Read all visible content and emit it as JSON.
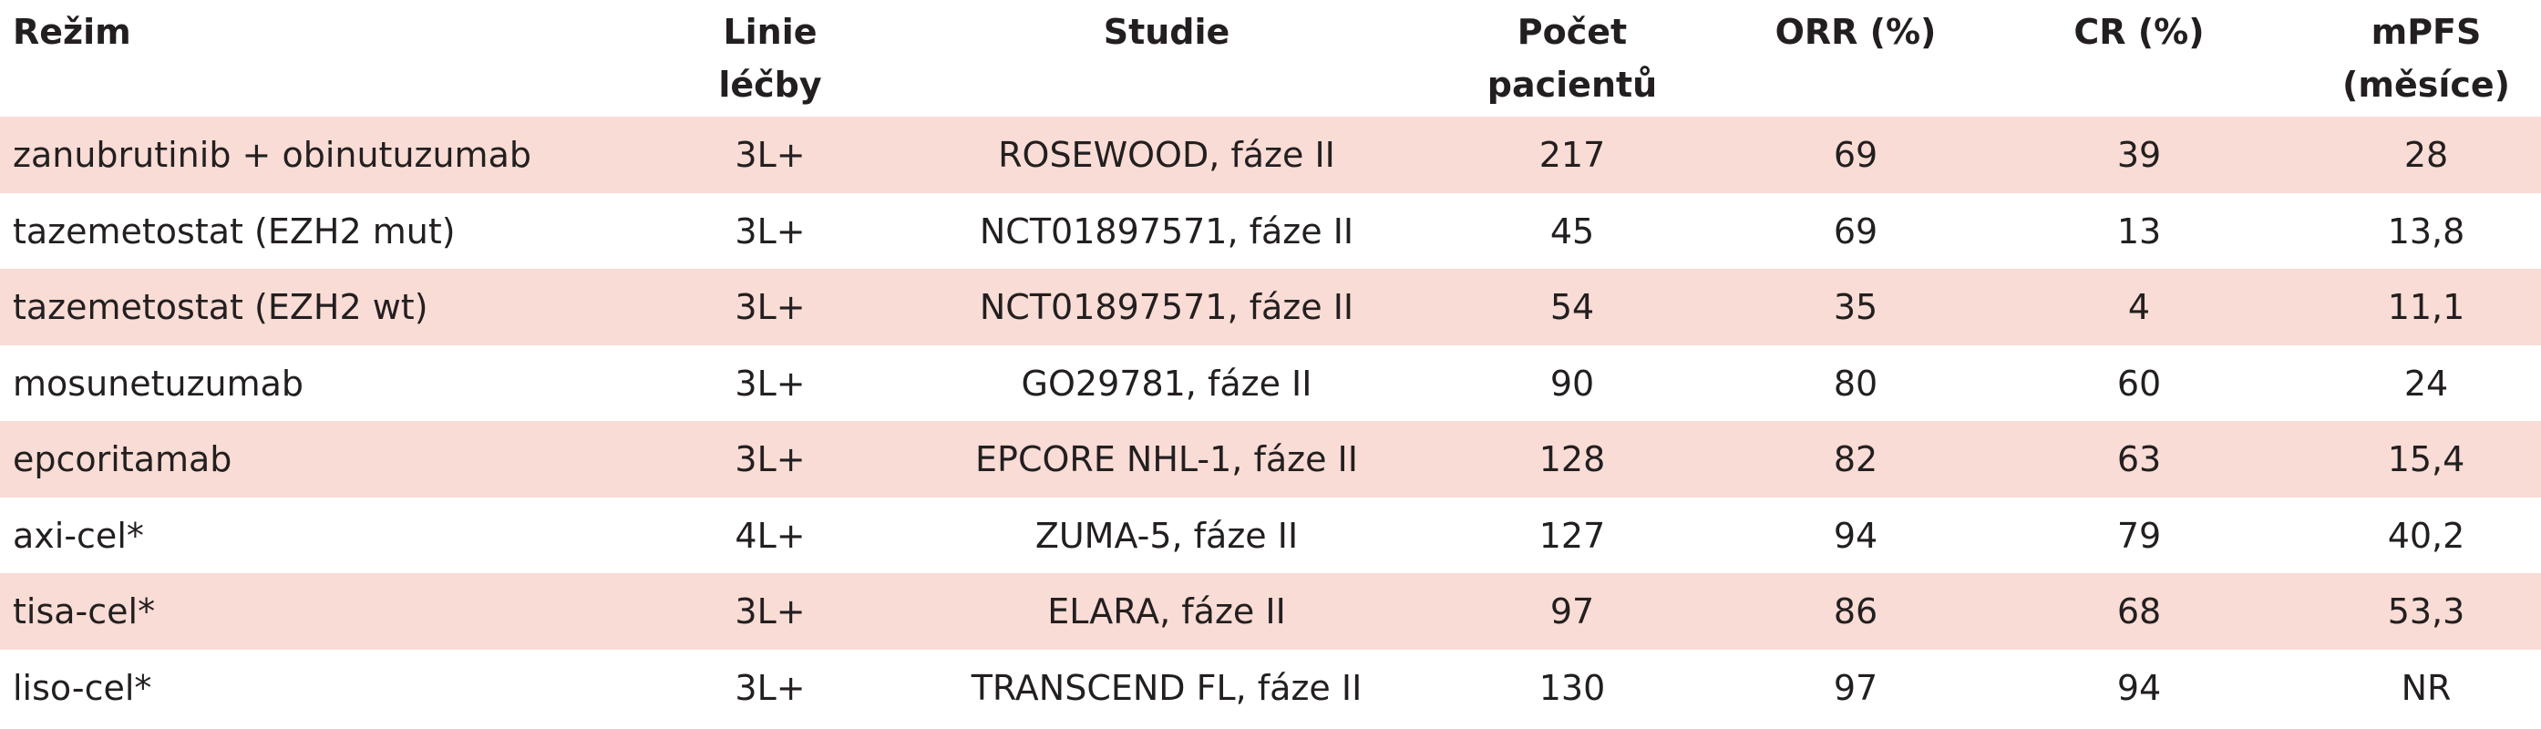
{
  "table": {
    "header": [
      [
        "Režim"
      ],
      [
        "Linie",
        "léčby"
      ],
      [
        "Studie"
      ],
      [
        "Počet",
        "pacientů"
      ],
      [
        "ORR (%)"
      ],
      [
        "CR (%)"
      ],
      [
        "mPFS",
        "(měsíce)"
      ]
    ],
    "rows": [
      [
        "zanubrutinib + obinutuzumab",
        "3L+",
        "ROSEWOOD, fáze II",
        "217",
        "69",
        "39",
        "28"
      ],
      [
        "tazemetostat (EZH2 mut)",
        "3L+",
        "NCT01897571, fáze II",
        "45",
        "69",
        "13",
        "13,8"
      ],
      [
        "tazemetostat (EZH2 wt)",
        "3L+",
        "NCT01897571, fáze II",
        "54",
        "35",
        "4",
        "11,1"
      ],
      [
        "mosunetuzumab",
        "3L+",
        "GO29781, fáze II",
        "90",
        "80",
        "60",
        "24"
      ],
      [
        "epcoritamab",
        "3L+",
        "EPCORE NHL-1, fáze II",
        "128",
        "82",
        "63",
        "15,4"
      ],
      [
        "axi-cel*",
        "4L+",
        "ZUMA-5, fáze II",
        "127",
        "94",
        "79",
        "40,2"
      ],
      [
        "tisa-cel*",
        "3L+",
        "ELARA, fáze II",
        "97",
        "86",
        "68",
        "53,3"
      ],
      [
        "liso-cel*",
        "3L+",
        "TRANSCEND FL, fáze II",
        "130",
        "97",
        "94",
        "NR"
      ]
    ]
  }
}
